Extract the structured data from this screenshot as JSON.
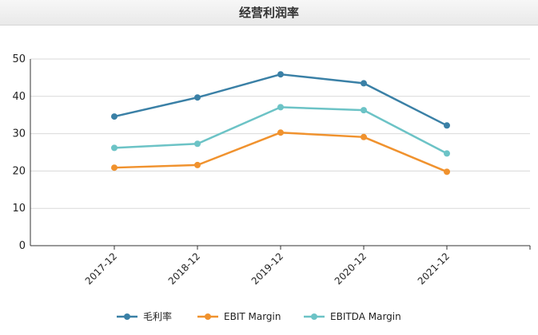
{
  "chart_data": {
    "type": "line",
    "title": "经营利润率",
    "categories": [
      "2017-12",
      "2018-12",
      "2019-12",
      "2020-12",
      "2021-12"
    ],
    "ylim": [
      0,
      50
    ],
    "yticks": [
      0,
      10,
      20,
      30,
      40,
      50
    ],
    "grid": true,
    "legend_position": "bottom",
    "series": [
      {
        "name": "毛利率",
        "color": "#3a80a6",
        "values": [
          34.6,
          39.7,
          45.9,
          43.5,
          32.2
        ]
      },
      {
        "name": "EBIT Margin",
        "color": "#f0922e",
        "values": [
          20.9,
          21.6,
          30.3,
          29.1,
          19.8
        ]
      },
      {
        "name": "EBITDA Margin",
        "color": "#6cc3c6",
        "values": [
          26.2,
          27.3,
          37.1,
          36.3,
          24.7
        ]
      }
    ]
  }
}
